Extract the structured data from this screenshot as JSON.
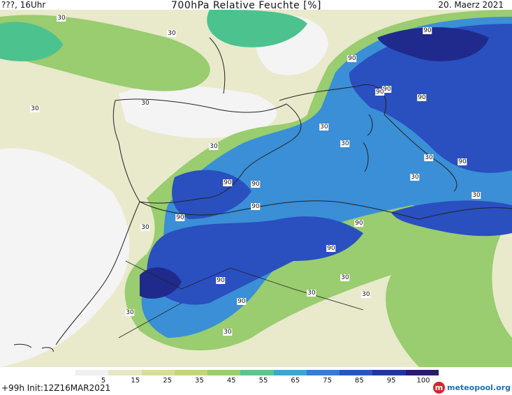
{
  "header": {
    "top_left": "???, 16Uhr",
    "title": "700hPa Relative Feuchte [%]",
    "date": "20. Maerz 2021"
  },
  "map": {
    "description_colors": {
      "very_dry": "#f4f4f4",
      "dry": "#e9e9cc",
      "medium_dry": "#cfd99b",
      "medium": "#9acc70",
      "moist": "#4cc28e",
      "wet": "#3a8fd6",
      "very_wet": "#2a4fbf",
      "saturated": "#1f2a8c"
    },
    "contour_labels": [
      {
        "text": "30"
      },
      {
        "text": "30"
      },
      {
        "text": "30"
      },
      {
        "text": "30"
      },
      {
        "text": "30"
      },
      {
        "text": "30"
      },
      {
        "text": "30"
      },
      {
        "text": "30"
      },
      {
        "text": "30"
      },
      {
        "text": "30"
      },
      {
        "text": "30"
      },
      {
        "text": "30"
      },
      {
        "text": "30"
      },
      {
        "text": "30"
      },
      {
        "text": "30"
      },
      {
        "text": "30"
      },
      {
        "text": "90"
      },
      {
        "text": "90"
      },
      {
        "text": "90"
      },
      {
        "text": "90"
      },
      {
        "text": "90"
      },
      {
        "text": "90"
      },
      {
        "text": "90"
      },
      {
        "text": "90"
      },
      {
        "text": "90"
      },
      {
        "text": "90"
      },
      {
        "text": "90"
      },
      {
        "text": "90"
      },
      {
        "text": "90"
      }
    ]
  },
  "colorbar": {
    "ticks": [
      "5",
      "15",
      "25",
      "35",
      "45",
      "55",
      "65",
      "75",
      "85",
      "95",
      "100"
    ],
    "colors": [
      "#f0f0f0",
      "#e8e6c4",
      "#d8dc9e",
      "#c4d47e",
      "#9acc70",
      "#5fc48a",
      "#3ea7c8",
      "#3a7ad4",
      "#2a54c4",
      "#22359e",
      "#2a1b6e"
    ]
  },
  "footer": {
    "init": "+99h  Init:12Z16MAR2021",
    "logo_text": "meteopool.org"
  }
}
